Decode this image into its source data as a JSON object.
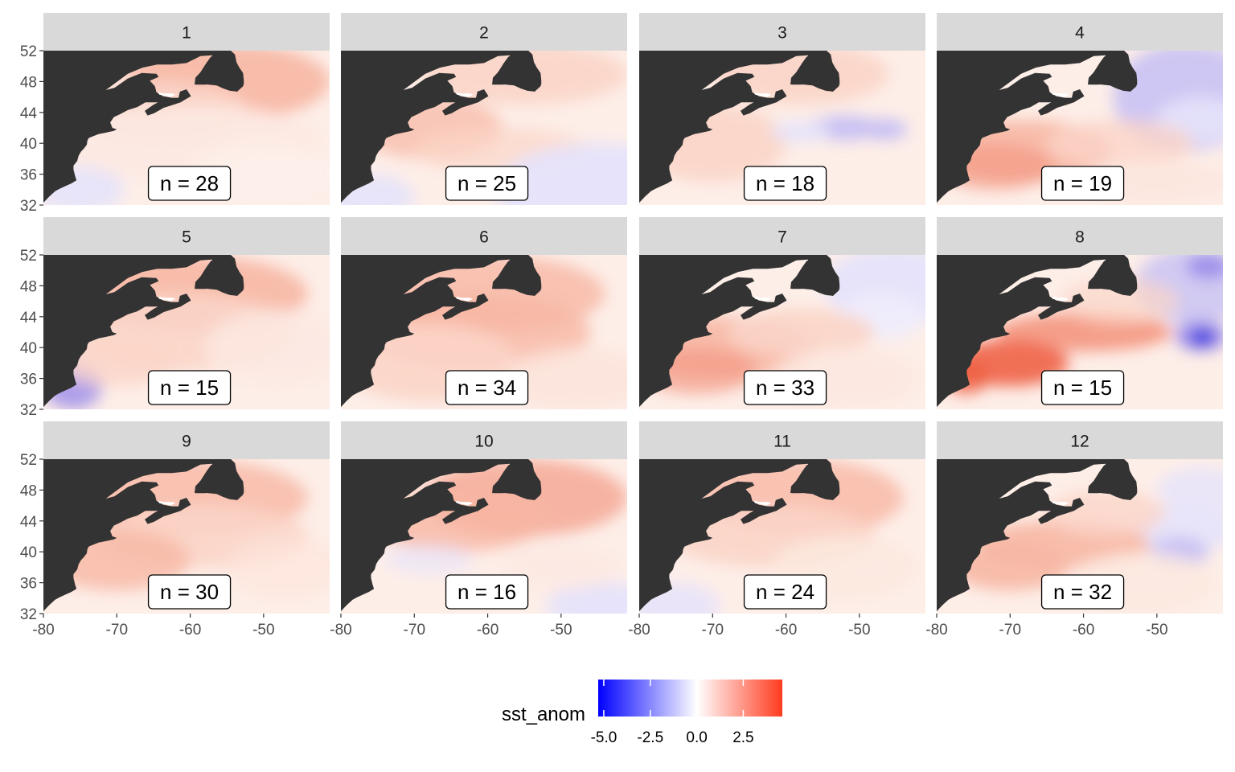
{
  "chart_data": {
    "type": "heatmap",
    "title": "",
    "facets": [
      {
        "label": "1",
        "n_label": "n = 28",
        "anomaly_pattern": "warm nearly everywhere, strongest off Newfoundland, slightly cool in far south-west"
      },
      {
        "label": "2",
        "n_label": "n = 25",
        "anomaly_pattern": "warm along shelf and north, cool in south-east"
      },
      {
        "label": "3",
        "n_label": "n = 18",
        "anomaly_pattern": "warm shelf, cool patches near 42N -55 to -45"
      },
      {
        "label": "4",
        "n_label": "n = 19",
        "anomaly_pattern": "warm shelf and Gulf Stream, cool north-east"
      },
      {
        "label": "5",
        "n_label": "n = 15",
        "anomaly_pattern": "warm widespread, cool near Cape Hatteras"
      },
      {
        "label": "6",
        "n_label": "n = 34",
        "anomaly_pattern": "warm widespread"
      },
      {
        "label": "7",
        "n_label": "n = 33",
        "anomaly_pattern": "warm shelf, cool north-east"
      },
      {
        "label": "8",
        "n_label": "n = 15",
        "anomaly_pattern": "strong warm band along Gulf Stream, strong cool spot near 41N -45"
      },
      {
        "label": "9",
        "n_label": "n = 30",
        "anomaly_pattern": "warm widespread"
      },
      {
        "label": "10",
        "n_label": "n = 16",
        "anomaly_pattern": "warm north, slightly cool south"
      },
      {
        "label": "11",
        "n_label": "n = 24",
        "anomaly_pattern": "warm widespread, slightly cool south"
      },
      {
        "label": "12",
        "n_label": "n = 32",
        "anomaly_pattern": "warm shelf, mixed east with cool spots"
      }
    ],
    "x_ticks": [
      "-80",
      "-70",
      "-60",
      "-50"
    ],
    "y_ticks": [
      "52",
      "48",
      "44",
      "40",
      "36",
      "32"
    ],
    "xlim": [
      -80,
      -41
    ],
    "ylim": [
      32,
      52
    ],
    "legend": {
      "title": "sst_anom",
      "ticks": [
        "-5.0",
        "-2.5",
        "0.0",
        "2.5"
      ],
      "range": [
        -5.3,
        4.6
      ],
      "low_color": "#0000ff",
      "mid_color": "#ffffff",
      "high_color": "#ff3b1f",
      "position": "bottom"
    },
    "land_color": "#333333",
    "strip_color": "#d9d9d9",
    "grid": false
  }
}
